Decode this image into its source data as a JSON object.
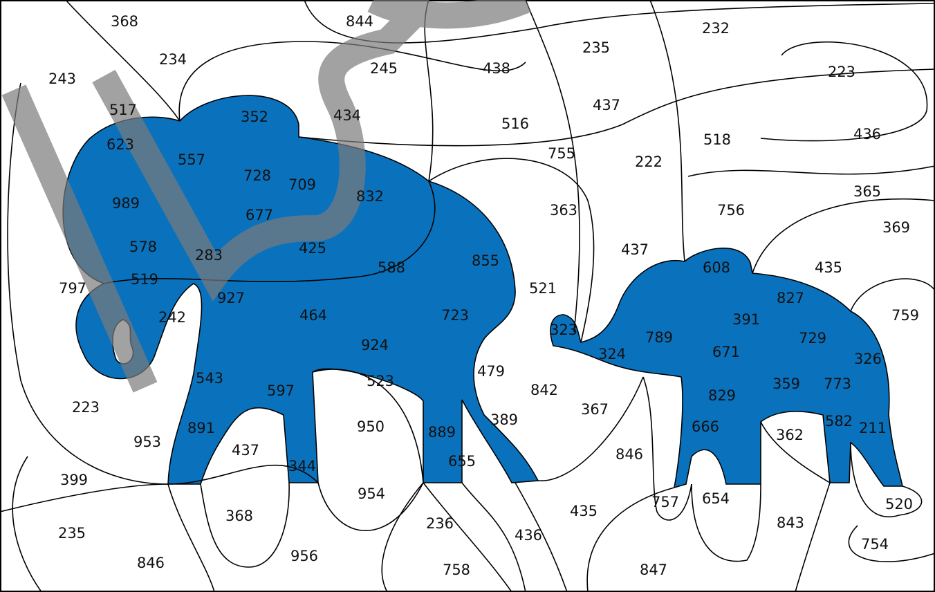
{
  "labels": [
    368,
    844,
    232,
    235,
    223,
    243,
    234,
    245,
    438,
    437,
    516,
    517,
    352,
    434,
    436,
    518,
    623,
    557,
    755,
    222,
    728,
    709,
    832,
    989,
    677,
    363,
    756,
    365,
    369,
    578,
    283,
    425,
    588,
    855,
    437,
    608,
    435,
    797,
    519,
    927,
    521,
    827,
    242,
    464,
    723,
    323,
    789,
    391,
    729,
    759,
    924,
    324,
    671,
    326,
    543,
    523,
    479,
    842,
    597,
    829,
    359,
    773,
    367,
    223,
    891,
    953,
    437,
    950,
    889,
    389,
    666,
    362,
    582,
    211,
    846,
    399,
    344,
    655,
    954,
    757,
    654,
    520,
    368,
    435,
    236,
    436,
    843,
    754,
    235,
    846,
    956,
    758,
    847
  ]
}
